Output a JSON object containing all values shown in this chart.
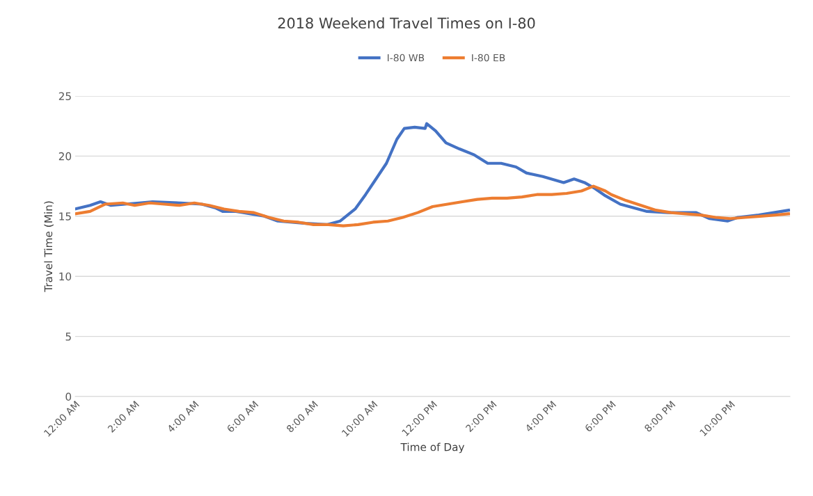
{
  "chart_data": {
    "type": "line",
    "title": "2018 Weekend Travel Times on I-80",
    "xlabel": "Time of Day",
    "ylabel": "Travel Time (Min)",
    "xlim": [
      0,
      24
    ],
    "xticks": [
      {
        "value": 0,
        "label": "12:00 AM"
      },
      {
        "value": 2,
        "label": "2:00 AM"
      },
      {
        "value": 4,
        "label": "4:00 AM"
      },
      {
        "value": 6,
        "label": "6:00 AM"
      },
      {
        "value": 8,
        "label": "8:00 AM"
      },
      {
        "value": 10,
        "label": "10:00 AM"
      },
      {
        "value": 12,
        "label": "12:00 PM"
      },
      {
        "value": 14,
        "label": "2:00 PM"
      },
      {
        "value": 16,
        "label": "4:00 PM"
      },
      {
        "value": 18,
        "label": "6:00 PM"
      },
      {
        "value": 20,
        "label": "8:00 PM"
      },
      {
        "value": 22,
        "label": "10:00 PM"
      }
    ],
    "ylim": [
      0,
      25
    ],
    "yticks": [
      0,
      5,
      10,
      15,
      20,
      25
    ],
    "grid": "y",
    "legend": "top",
    "marker": "none",
    "line_style": "solid",
    "series": [
      {
        "name": "I-80 WB",
        "color": "#4472c4",
        "x": [
          0,
          0.5,
          0.85,
          1.2,
          2.15,
          2.6,
          3.55,
          4.25,
          4.7,
          4.95,
          5.4,
          6.35,
          6.8,
          7.75,
          8.45,
          8.9,
          9.4,
          9.75,
          10.1,
          10.45,
          10.8,
          11.05,
          11.4,
          11.75,
          11.8,
          12.1,
          12.45,
          12.9,
          13.4,
          13.85,
          14.3,
          14.8,
          15.15,
          15.7,
          16.4,
          16.75,
          17.1,
          17.45,
          17.8,
          18.3,
          18.75,
          19.2,
          19.9,
          20.85,
          21.3,
          21.9,
          22.25,
          22.95,
          23.95
        ],
        "values": [
          15.6,
          15.9,
          16.2,
          15.9,
          16.1,
          16.2,
          16.1,
          16.0,
          15.7,
          15.4,
          15.4,
          15.0,
          14.6,
          14.4,
          14.3,
          14.6,
          15.6,
          16.8,
          18.1,
          19.4,
          21.4,
          22.3,
          22.4,
          22.3,
          22.7,
          22.1,
          21.1,
          20.6,
          20.1,
          19.4,
          19.4,
          19.1,
          18.6,
          18.3,
          17.8,
          18.1,
          17.8,
          17.3,
          16.7,
          16.0,
          15.7,
          15.4,
          15.3,
          15.3,
          14.8,
          14.6,
          14.9,
          15.1,
          15.5
        ]
      },
      {
        "name": "I-80 EB",
        "color": "#ed7d31",
        "x": [
          0,
          0.5,
          1.0,
          1.6,
          2.0,
          2.5,
          3.0,
          3.5,
          4.0,
          4.5,
          5.0,
          5.5,
          6.0,
          6.5,
          7.0,
          7.5,
          8.0,
          8.5,
          9.0,
          9.5,
          10.0,
          10.5,
          11.0,
          11.5,
          12.0,
          12.5,
          13.0,
          13.5,
          14.0,
          14.5,
          15.0,
          15.5,
          16.0,
          16.5,
          17.0,
          17.4,
          17.8,
          18.0,
          18.5,
          19.0,
          19.5,
          20.0,
          20.5,
          21.0,
          21.5,
          22.0,
          22.5,
          23.0,
          23.5,
          23.95
        ],
        "values": [
          15.2,
          15.4,
          16.0,
          16.1,
          15.9,
          16.1,
          16.0,
          15.9,
          16.1,
          15.9,
          15.6,
          15.4,
          15.3,
          14.9,
          14.6,
          14.5,
          14.3,
          14.3,
          14.2,
          14.3,
          14.5,
          14.6,
          14.9,
          15.3,
          15.8,
          16.0,
          16.2,
          16.4,
          16.5,
          16.5,
          16.6,
          16.8,
          16.8,
          16.9,
          17.1,
          17.5,
          17.1,
          16.8,
          16.3,
          15.9,
          15.5,
          15.3,
          15.2,
          15.1,
          14.9,
          14.8,
          14.9,
          15.0,
          15.1,
          15.2
        ]
      }
    ]
  }
}
